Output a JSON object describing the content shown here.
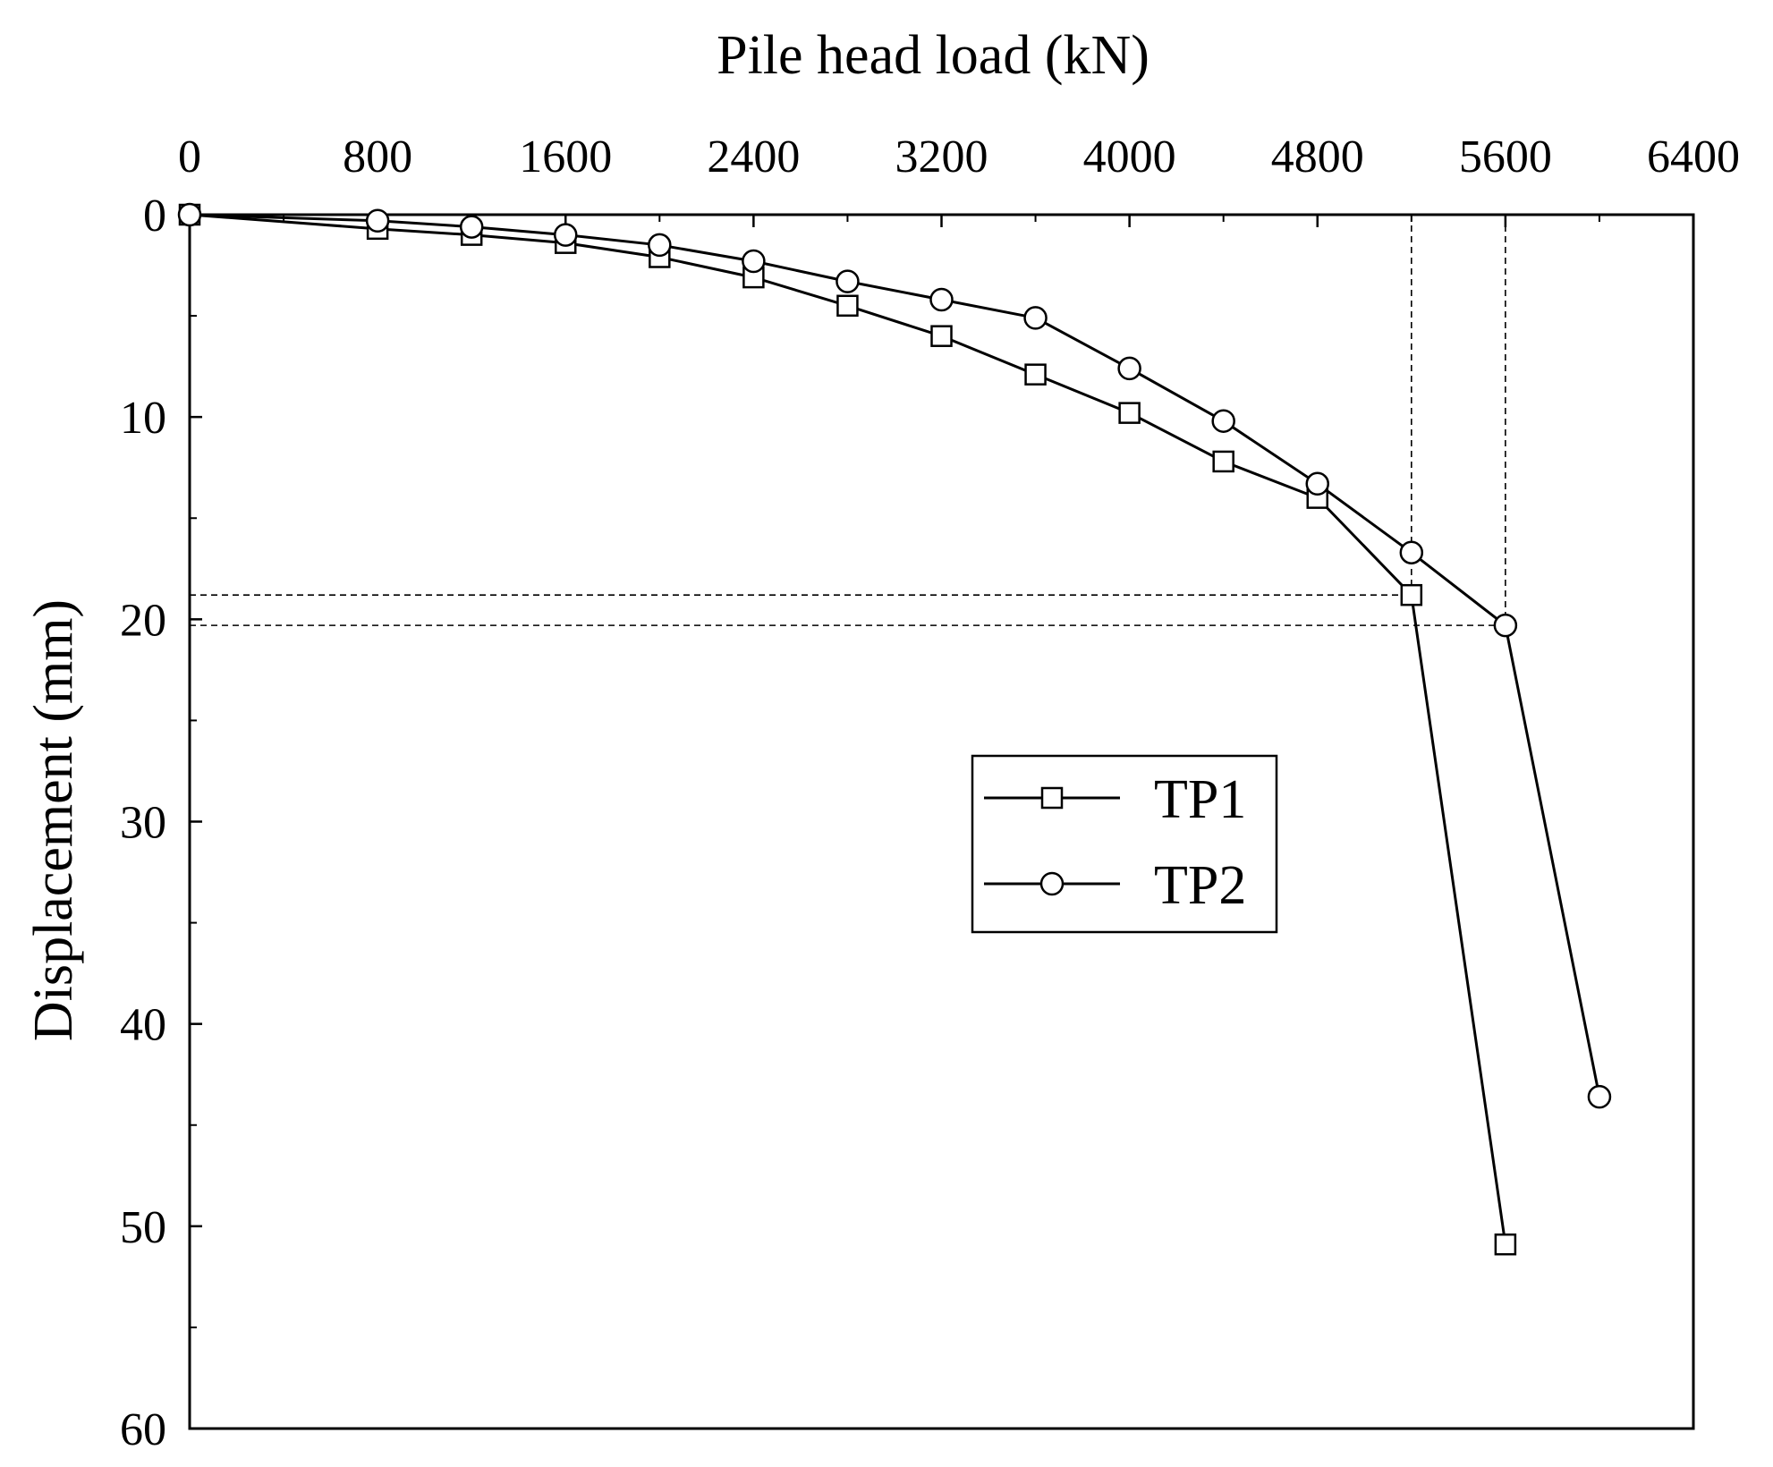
{
  "chart_data": {
    "type": "line",
    "xlabel": "Pile head load (kN)",
    "ylabel": "Displacement (mm)",
    "xlim": [
      0,
      6400
    ],
    "ylim": [
      0,
      60
    ],
    "y_inverted": true,
    "x_axis_position": "top",
    "x_ticks": [
      0,
      800,
      1600,
      2400,
      3200,
      4000,
      4800,
      5600,
      6400
    ],
    "x_tick_labels": [
      "0",
      "800",
      "1600",
      "2400",
      "3200",
      "4000",
      "4800",
      "5600",
      "6400"
    ],
    "y_ticks": [
      0,
      10,
      20,
      30,
      40,
      50,
      60
    ],
    "y_tick_labels": [
      "0",
      "10",
      "20",
      "30",
      "40",
      "50",
      "60"
    ],
    "grid": false,
    "legend_position": "center-right",
    "series": [
      {
        "name": "TP1",
        "marker": "square",
        "x": [
          0,
          800,
          1200,
          1600,
          2000,
          2400,
          2800,
          3200,
          3600,
          4000,
          4400,
          4800,
          5200,
          5600
        ],
        "y": [
          0,
          0.7,
          1.0,
          1.4,
          2.1,
          3.1,
          4.5,
          6.0,
          7.9,
          9.8,
          12.2,
          14.0,
          18.8,
          50.9
        ]
      },
      {
        "name": "TP2",
        "marker": "circle",
        "x": [
          0,
          800,
          1200,
          1600,
          2000,
          2400,
          2800,
          3200,
          3600,
          4000,
          4400,
          4800,
          5200,
          5600,
          6000
        ],
        "y": [
          0,
          0.3,
          0.6,
          1.0,
          1.5,
          2.3,
          3.3,
          4.2,
          5.1,
          7.6,
          10.2,
          13.3,
          16.7,
          20.3,
          43.6
        ]
      }
    ],
    "reference_lines": [
      {
        "type": "vertical",
        "x": 5200,
        "y_from": 0,
        "y_to": 18.8
      },
      {
        "type": "vertical",
        "x": 5600,
        "y_from": 0,
        "y_to": 20.3
      },
      {
        "type": "horizontal",
        "y": 18.8,
        "x_from": 0,
        "x_to": 5200
      },
      {
        "type": "horizontal",
        "y": 20.3,
        "x_from": 0,
        "x_to": 5600
      }
    ]
  }
}
